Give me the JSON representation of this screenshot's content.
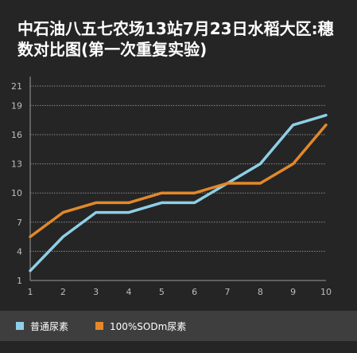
{
  "chart_data": {
    "type": "line",
    "title_line1": "中石油八五七农场13站7月23日水稻大区:穗",
    "title_line2": "数对比图(第一次重复实验)",
    "x": [
      1,
      2,
      3,
      4,
      5,
      6,
      7,
      8,
      9,
      10
    ],
    "x_tick_labels": [
      "1",
      "2",
      "3",
      "4",
      "5",
      "6",
      "7",
      "8",
      "9",
      "10"
    ],
    "y_tick_labels": [
      "1",
      "4",
      "7",
      "10",
      "13",
      "16",
      "19",
      "21"
    ],
    "ylim": [
      1,
      21
    ],
    "grid": true,
    "legend_position": "bottom-left",
    "series": [
      {
        "name": "普通尿素",
        "color": "#8ecfe6",
        "values": [
          2,
          5.5,
          8,
          8,
          9,
          9,
          11,
          13,
          17,
          18
        ]
      },
      {
        "name": "100%SODm尿素",
        "color": "#e3882a",
        "values": [
          5.5,
          8,
          9,
          9,
          10,
          10,
          11,
          11,
          13,
          17
        ]
      }
    ]
  }
}
